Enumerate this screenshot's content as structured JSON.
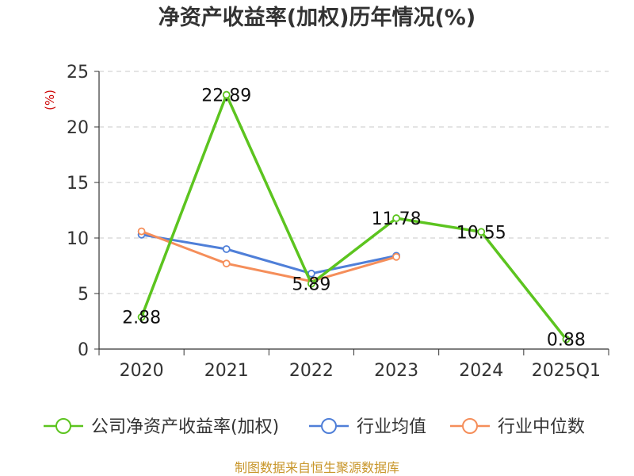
{
  "chart_data": {
    "type": "line",
    "title": "净资产收益率(加权)历年情况(%)",
    "ylabel": "(%)",
    "xlabel": "",
    "categories": [
      "2020",
      "2021",
      "2022",
      "2023",
      "2024",
      "2025Q1"
    ],
    "ylim": [
      0,
      25
    ],
    "yticks": [
      0,
      5,
      10,
      15,
      20,
      25
    ],
    "grid": true,
    "legend_position": "bottom",
    "series": [
      {
        "name": "公司净资产收益率(加权)",
        "color": "#5cc41f",
        "values": [
          2.88,
          22.89,
          5.89,
          11.78,
          10.55,
          0.88
        ],
        "labels": [
          "2.88",
          "22.89",
          "5.89",
          "11.78",
          "10.55",
          "0.88"
        ]
      },
      {
        "name": "行业均值",
        "color": "#4f7fd8",
        "values": [
          10.3,
          9.0,
          6.8,
          8.4,
          null,
          null
        ]
      },
      {
        "name": "行业中位数",
        "color": "#f58e5a",
        "values": [
          10.6,
          7.7,
          6.1,
          8.3,
          null,
          null
        ]
      }
    ]
  },
  "footer": {
    "source": "制图数据来自恒生聚源数据库"
  }
}
